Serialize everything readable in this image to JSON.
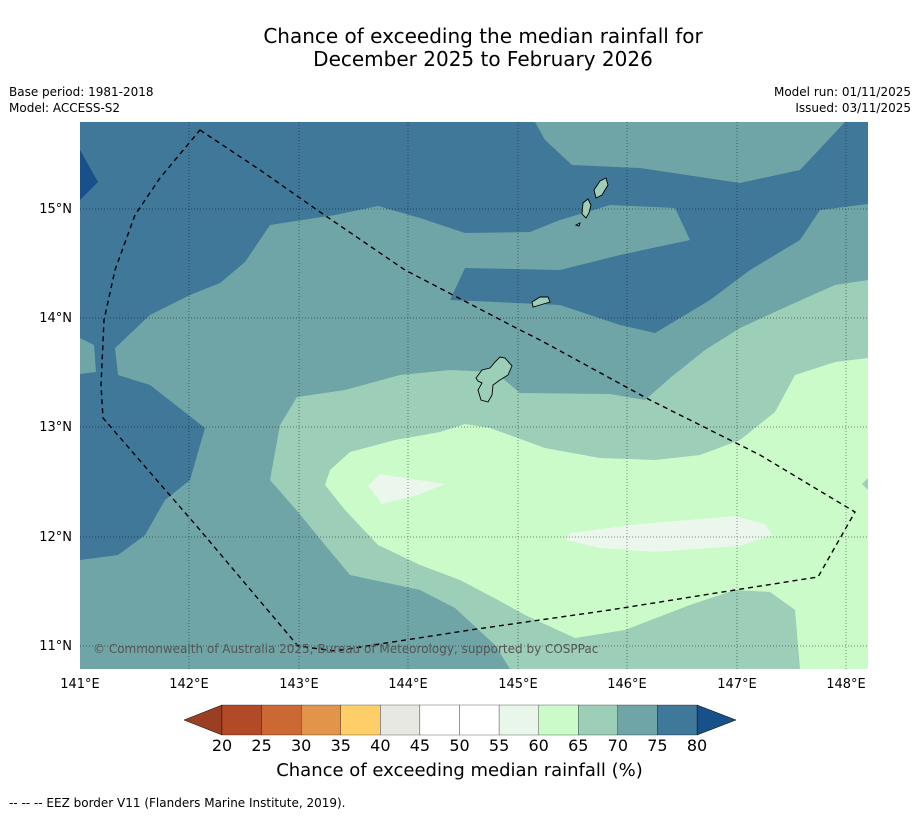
{
  "title": {
    "line1": "Chance of exceeding the median rainfall for",
    "line2": "December 2025 to February 2026"
  },
  "meta": {
    "base_period": "Base period: 1981-2018",
    "model": "Model: ACCESS-S2",
    "model_run": "Model run: 01/11/2025",
    "issued": "Issued: 03/11/2025"
  },
  "map": {
    "lon_ticks": [
      "141°E",
      "142°E",
      "143°E",
      "144°E",
      "145°E",
      "146°E",
      "147°E",
      "148°E"
    ],
    "lat_ticks": [
      "15°N",
      "14°N",
      "13°N",
      "12°N",
      "11°N"
    ],
    "copyright": "© Commonwealth of Australia 2025, Bureau of Meteorology, supported by COSPPac",
    "legend_region": "EEZ border",
    "colors": {
      "c75_80": "#3f7898",
      "c70_75": "#6fa5a6",
      "c65_70": "#9cceb8",
      "c60_65": "#cafbc9",
      "c55_60": "#ebf6ec",
      "above80": "#18508a"
    }
  },
  "colorbar": {
    "ticks": [
      "20",
      "25",
      "30",
      "35",
      "40",
      "45",
      "50",
      "55",
      "60",
      "65",
      "70",
      "75",
      "80"
    ],
    "colors": [
      "#b24a27",
      "#cc6833",
      "#e2944a",
      "#fecf68",
      "#e8e8e2",
      "#ffffff",
      "#ffffff",
      "#e9f7ea",
      "#cafbc9",
      "#9cceb8",
      "#6fa5a6",
      "#3f7898"
    ],
    "low_extend_color": "#9b3f24",
    "high_extend_color": "#18508a",
    "label": "Chance of exceeding median rainfall (%)"
  },
  "footnote": "--  --  -- EEZ border V11 (Flanders Marine Institute, 2019)."
}
